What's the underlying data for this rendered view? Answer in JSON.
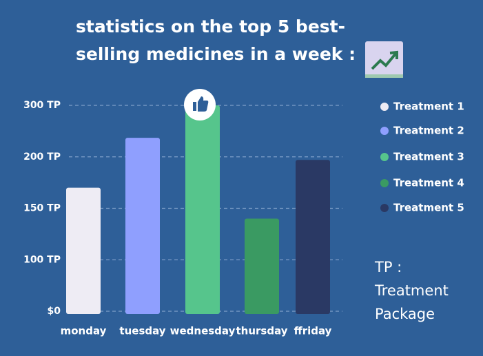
{
  "chart_data": {
    "type": "bar",
    "title_lines": [
      "statistics on the top 5 best-",
      "selling medicines in a week :"
    ],
    "categories": [
      "monday",
      "tuesday",
      "wednesday",
      "thursday",
      "ffriday"
    ],
    "values": [
      170,
      237,
      300,
      140,
      197
    ],
    "colors": [
      "#eeecf4",
      "#8f9ffe",
      "#56c58c",
      "#3a9a62",
      "#2a3964"
    ],
    "legend": [
      "Treatment 1",
      "Treatment 2",
      "Treatment 3",
      "Treatment 4",
      "Treatment 5"
    ],
    "ylim": [
      0,
      300
    ],
    "yticks": [
      {
        "value": 0,
        "label": "$0"
      },
      {
        "value": 100,
        "label": "100 TP"
      },
      {
        "value": 150,
        "label": "150 TP"
      },
      {
        "value": 200,
        "label": "200 TP"
      },
      {
        "value": 300,
        "label": "300 TP"
      }
    ],
    "y_scale": "tick-spaced",
    "grid": true,
    "note_lines": [
      "TP :",
      "Treatment",
      "Package"
    ]
  }
}
